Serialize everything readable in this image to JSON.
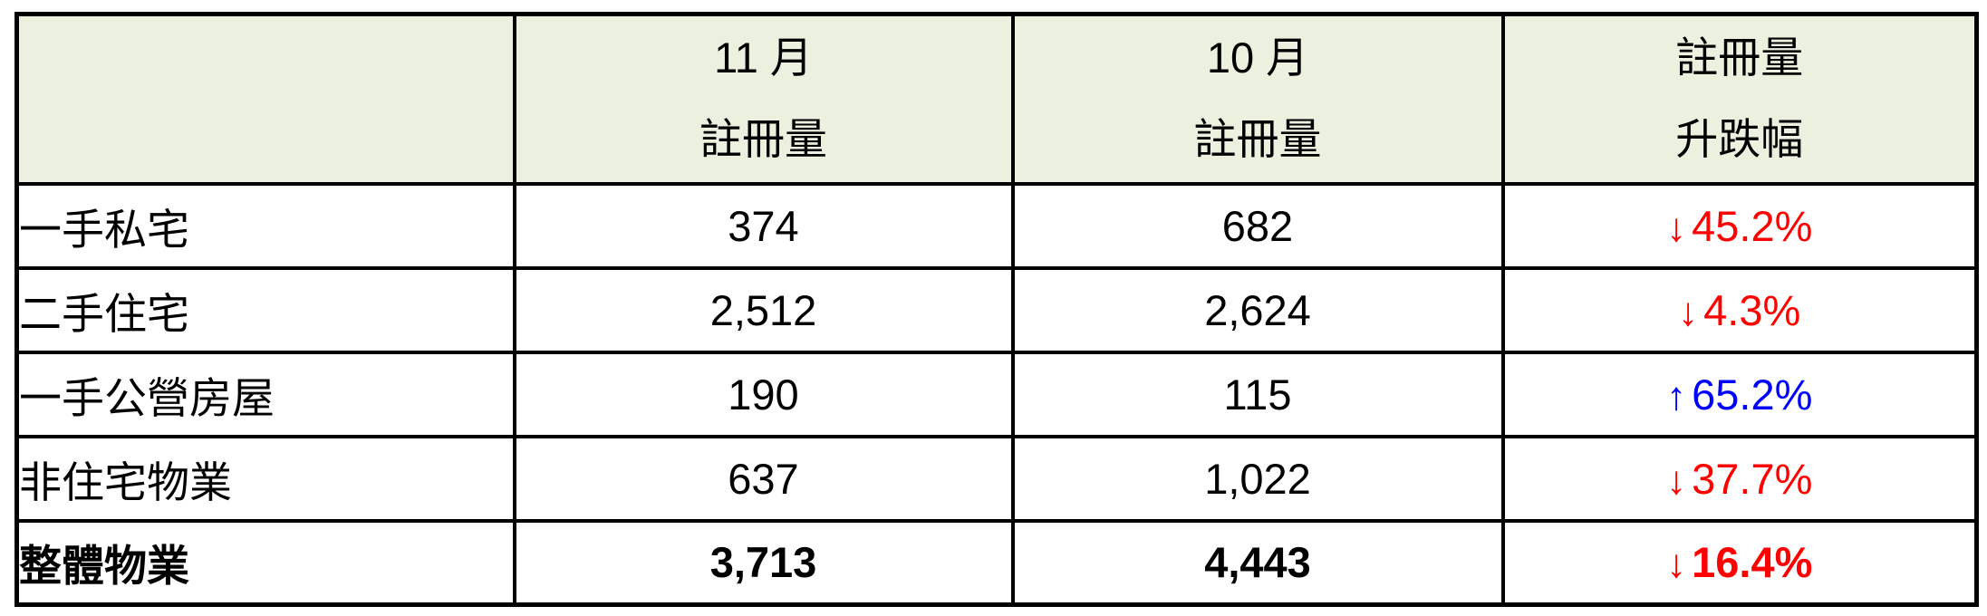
{
  "table": {
    "header": {
      "corner": "",
      "col_nov": {
        "line1": "11 月",
        "line2": "註冊量"
      },
      "col_oct": {
        "line1": "10 月",
        "line2": "註冊量"
      },
      "col_change": {
        "line1": "註冊量",
        "line2": "升跌幅"
      }
    },
    "rows": [
      {
        "label": "一手私宅",
        "nov": "374",
        "oct": "682",
        "arrow": "↓",
        "pct": "45.2%",
        "trend": "down",
        "color": "#FF0000"
      },
      {
        "label": "二手住宅",
        "nov": "2,512",
        "oct": "2,624",
        "arrow": "↓",
        "pct": "4.3%",
        "trend": "down",
        "color": "#FF0000"
      },
      {
        "label": "一手公營房屋",
        "nov": "190",
        "oct": "115",
        "arrow": "↑",
        "pct": "65.2%",
        "trend": "up",
        "color": "#0000FF"
      },
      {
        "label": "非住宅物業",
        "nov": "637",
        "oct": "1,022",
        "arrow": "↓",
        "pct": "37.7%",
        "trend": "down",
        "color": "#FF0000"
      },
      {
        "label": "整體物業",
        "nov": "3,713",
        "oct": "4,443",
        "arrow": "↓",
        "pct": "16.4%",
        "trend": "down",
        "color": "#FF0000"
      }
    ],
    "colors": {
      "header_bg": "#EBF1DE",
      "down": "#FF0000",
      "up": "#0000FF",
      "border": "#000000"
    }
  },
  "chart_data": {
    "type": "table",
    "title": "",
    "columns": [
      "",
      "11 月 註冊量",
      "10 月 註冊量",
      "註冊量 升跌幅"
    ],
    "rows": [
      [
        "一手私宅",
        374,
        682,
        "-45.2%"
      ],
      [
        "二手住宅",
        2512,
        2624,
        "-4.3%"
      ],
      [
        "一手公營房屋",
        190,
        115,
        "+65.2%"
      ],
      [
        "非住宅物業",
        637,
        1022,
        "-37.7%"
      ],
      [
        "整體物業",
        3713,
        4443,
        "-16.4%"
      ]
    ],
    "notes": "Last row 整體物業 is a bold total row. Decreases shown in red with ↓, increases in blue with ↑. Header row has pale green background #EBF1DE."
  }
}
